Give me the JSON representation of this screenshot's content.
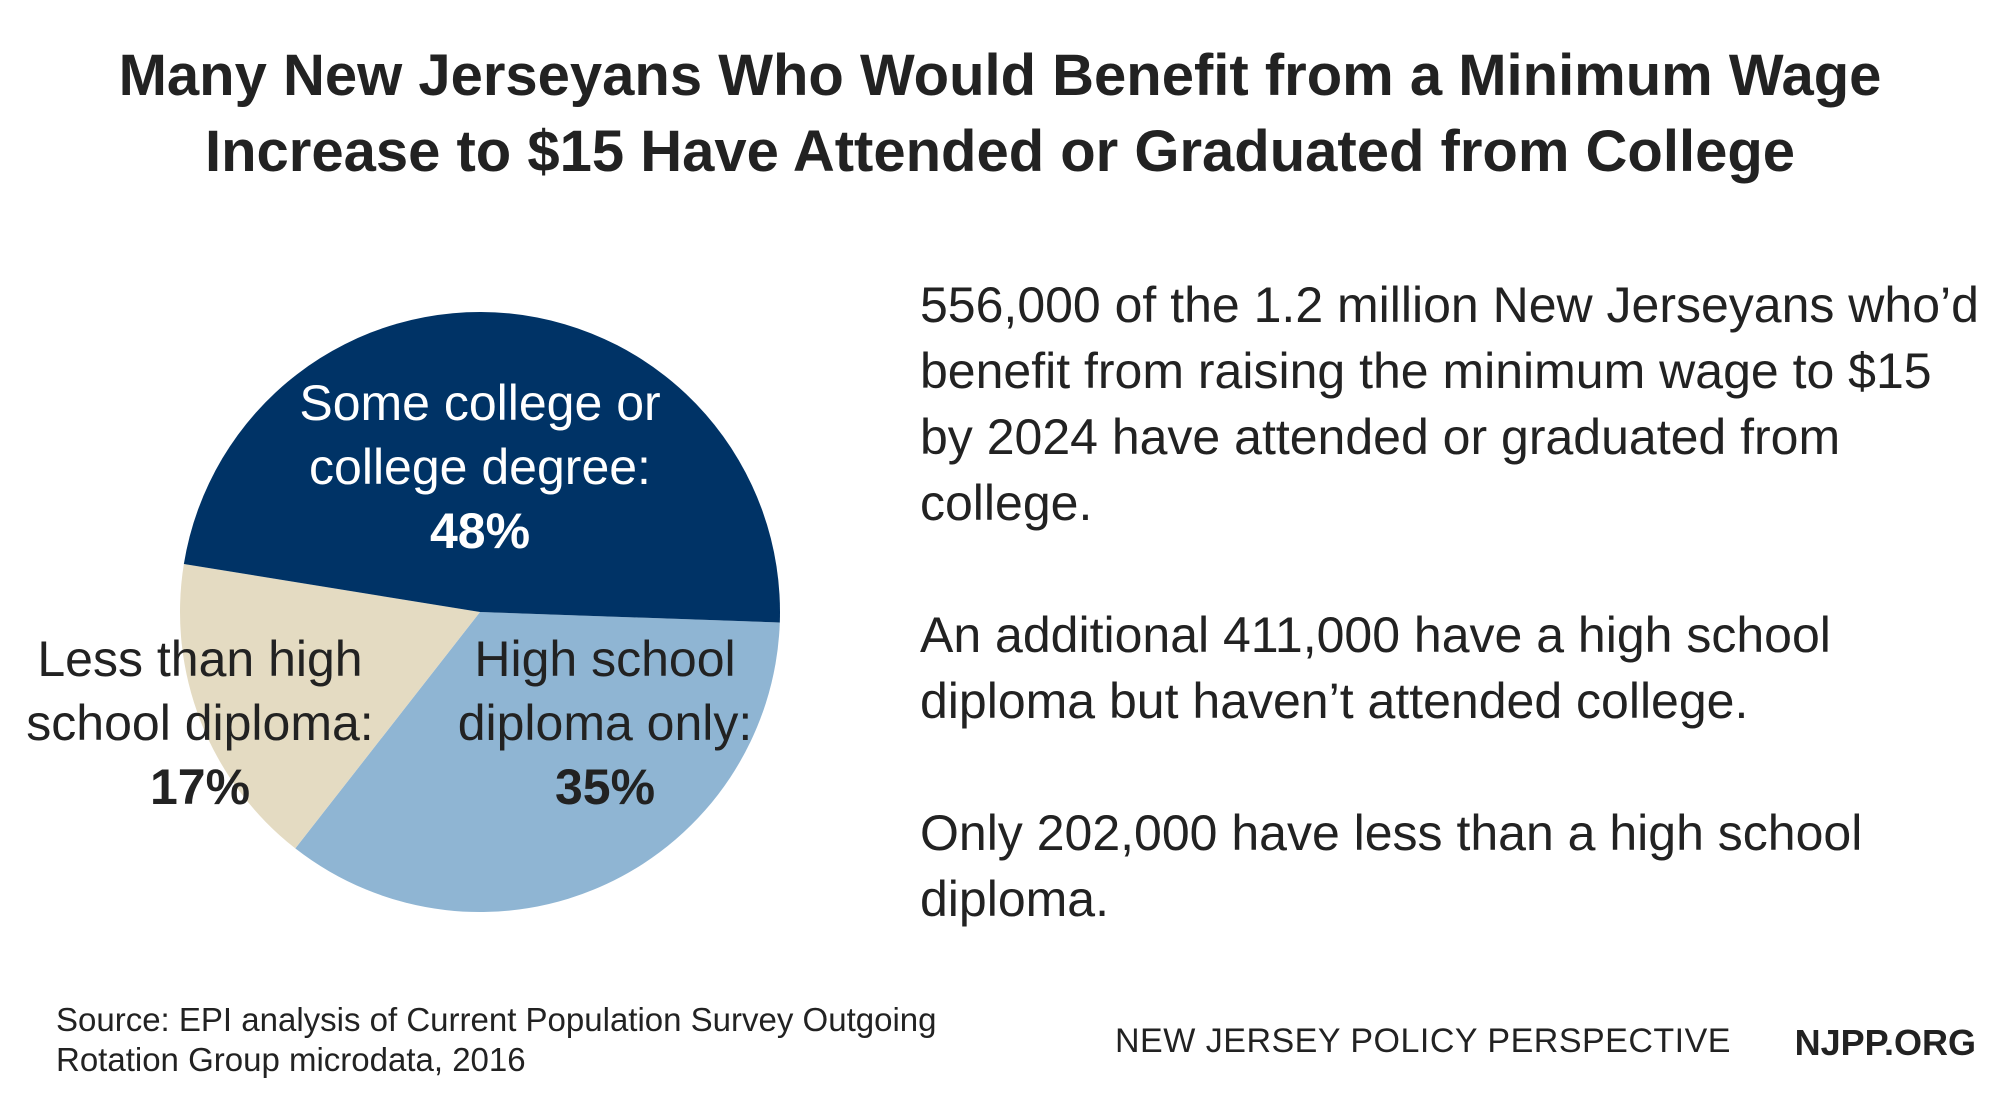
{
  "title": {
    "line1": "Many New Jerseyans Who Would Benefit from a Minimum Wage",
    "line2": "Increase to $15 Have Attended or Graduated from College"
  },
  "chart_data": {
    "type": "pie",
    "slices": [
      {
        "id": "college",
        "label_lines": [
          "Some college or",
          "college degree:"
        ],
        "value_label": "48%",
        "value": 48,
        "color": "#003366",
        "text_color": "#ffffff"
      },
      {
        "id": "hs",
        "label_lines": [
          "High school",
          "diploma only:"
        ],
        "value_label": "35%",
        "value": 35,
        "color": "#8fb5d3",
        "text_color": "#222222"
      },
      {
        "id": "less",
        "label_lines": [
          "Less than high",
          "school diploma:"
        ],
        "value_label": "17%",
        "value": 17,
        "color": "#e4dbc2",
        "text_color": "#222222"
      }
    ]
  },
  "body": {
    "p1": "556,000 of the 1.2 million New Jerseyans who’d benefit from raising the minimum wage to $15 by 2024 have attended or graduated from college.",
    "p2": "An additional 411,000 have a high school diploma but haven’t attended college.",
    "p3": "Only 202,000 have less than a high school diploma."
  },
  "footer": {
    "source_line1": "Source: EPI analysis of Current Population Survey Outgoing",
    "source_line2": "Rotation Group microdata, 2016",
    "org": "NEW JERSEY POLICY PERSPECTIVE",
    "site": "NJPP.ORG"
  }
}
